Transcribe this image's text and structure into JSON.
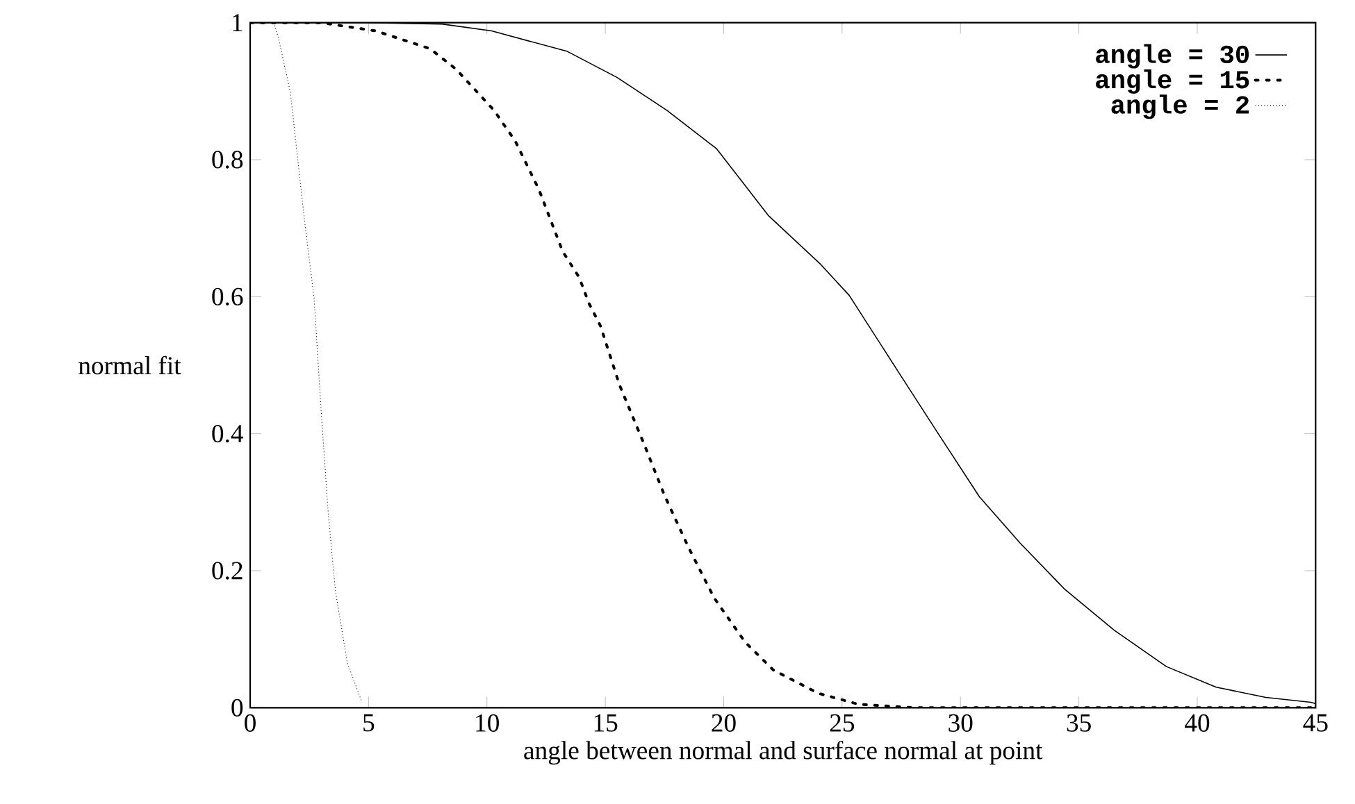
{
  "chart_data": {
    "type": "line",
    "xlabel": "angle between normal and surface normal at point",
    "ylabel": "normal fit",
    "xlim": [
      0,
      45
    ],
    "ylim": [
      0,
      1
    ],
    "xticks": [
      0,
      5,
      10,
      15,
      20,
      25,
      30,
      35,
      40,
      45
    ],
    "yticks": [
      0,
      0.2,
      0.4,
      0.6,
      0.8,
      1
    ],
    "grid": false,
    "legend": "top right",
    "marker": "none",
    "series": [
      {
        "name": "angle = 30",
        "color": "#000000",
        "line_style": "solid",
        "x": [
          0,
          5,
          8.1,
          10.2,
          13.4,
          15.5,
          17.6,
          19.7,
          21.9,
          24.1,
          25.3,
          27.4,
          29.1,
          30.8,
          32.5,
          34.4,
          36.5,
          38.7,
          40.8,
          42.9,
          44.8,
          45
        ],
        "values": [
          1,
          1,
          0.998,
          0.988,
          0.958,
          0.92,
          0.872,
          0.816,
          0.718,
          0.647,
          0.602,
          0.489,
          0.398,
          0.308,
          0.241,
          0.173,
          0.113,
          0.06,
          0.03,
          0.015,
          0.008,
          0.006
        ]
      },
      {
        "name": "angle = 15",
        "color": "#000000",
        "line_style": "dotted",
        "x": [
          0,
          3,
          5.3,
          7.6,
          8.7,
          10.3,
          11.2,
          12.2,
          13.2,
          13.9,
          14.3,
          14.8,
          15.6,
          16.6,
          17.5,
          18.5,
          19.6,
          20.9,
          22.1,
          24,
          25.7,
          28,
          35,
          45
        ],
        "values": [
          1,
          1,
          0.988,
          0.962,
          0.932,
          0.872,
          0.827,
          0.756,
          0.666,
          0.628,
          0.591,
          0.557,
          0.471,
          0.388,
          0.31,
          0.235,
          0.16,
          0.096,
          0.055,
          0.021,
          0.005,
          0,
          0,
          0
        ]
      },
      {
        "name": "angle = 2",
        "color": "#000000",
        "line_style": "dotted",
        "x": [
          1,
          1.2,
          1.7,
          2.3,
          2.7,
          3,
          3.3,
          3.6,
          4.1,
          4.7
        ],
        "values": [
          1,
          0.977,
          0.898,
          0.71,
          0.598,
          0.433,
          0.283,
          0.171,
          0.066,
          0.01
        ]
      }
    ]
  }
}
